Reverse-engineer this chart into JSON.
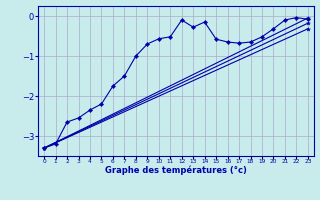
{
  "title": "Graphe des températures (°c)",
  "bg_color": "#c8ecec",
  "grid_color": "#aaaacc",
  "line_color": "#0000aa",
  "xlim": [
    -0.5,
    23.5
  ],
  "ylim": [
    -3.5,
    0.25
  ],
  "yticks": [
    0,
    -1,
    -2,
    -3
  ],
  "xticks": [
    0,
    1,
    2,
    3,
    4,
    5,
    6,
    7,
    8,
    9,
    10,
    11,
    12,
    13,
    14,
    15,
    16,
    17,
    18,
    19,
    20,
    21,
    22,
    23
  ],
  "curve1_x": [
    0,
    1,
    2,
    3,
    4,
    5,
    6,
    7,
    8,
    9,
    10,
    11,
    12,
    13,
    14,
    15,
    16,
    17,
    18,
    19,
    20,
    21,
    22,
    23
  ],
  "curve1_y": [
    -3.3,
    -3.2,
    -2.65,
    -2.55,
    -2.35,
    -2.2,
    -1.75,
    -1.5,
    -1.0,
    -0.7,
    -0.57,
    -0.52,
    -0.1,
    -0.28,
    -0.15,
    -0.58,
    -0.65,
    -0.68,
    -0.65,
    -0.52,
    -0.32,
    -0.1,
    -0.04,
    -0.08
  ],
  "line1_x": [
    0,
    23
  ],
  "line1_y": [
    -3.3,
    -0.05
  ],
  "line2_x": [
    0,
    23
  ],
  "line2_y": [
    -3.3,
    -0.18
  ],
  "line3_x": [
    0,
    23
  ],
  "line3_y": [
    -3.3,
    -0.32
  ]
}
